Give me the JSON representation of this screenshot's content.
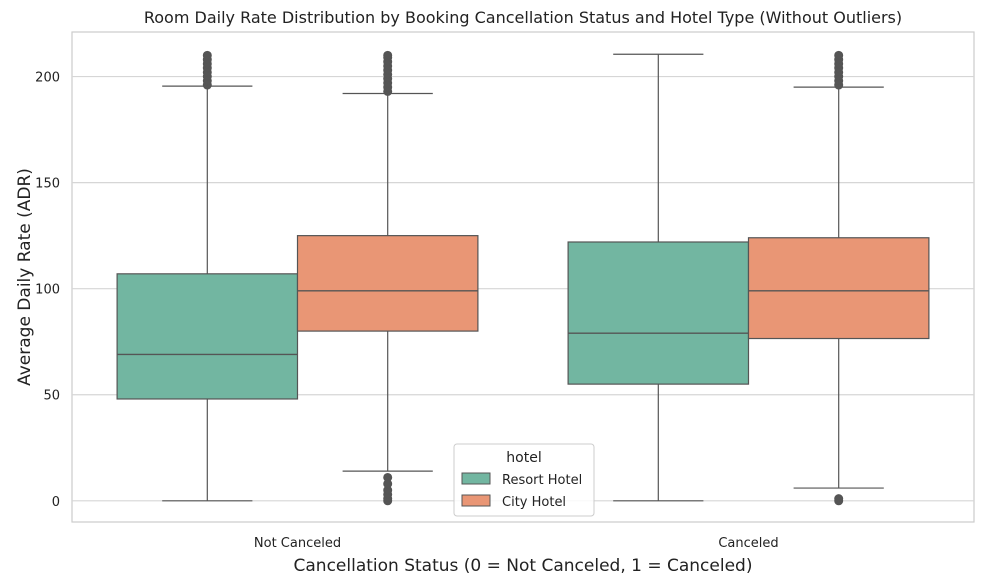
{
  "chart_data": {
    "type": "box",
    "title": "Room Daily Rate Distribution by Booking Cancellation Status and Hotel Type (Without Outliers)",
    "xlabel": "Cancellation Status (0 = Not Canceled, 1 = Canceled)",
    "ylabel": "Average Daily Rate (ADR)",
    "categories": [
      "Not Canceled",
      "Canceled"
    ],
    "ylim": [
      -10,
      221
    ],
    "yticks": [
      0,
      50,
      100,
      150,
      200
    ],
    "grid": true,
    "legend": {
      "title": "hotel",
      "position": "bottom-center"
    },
    "series": [
      {
        "name": "Resort Hotel",
        "color": "#72b6a1",
        "boxes": [
          {
            "category": "Not Canceled",
            "whisker_low": 0,
            "q1": 48,
            "median": 69,
            "q3": 107,
            "whisker_high": 195.5,
            "outliers_low": [],
            "outliers_high": [
              196,
              198,
              200,
              202,
              204,
              206,
              208,
              210
            ]
          },
          {
            "category": "Canceled",
            "whisker_low": 0,
            "q1": 55,
            "median": 79,
            "q3": 122,
            "whisker_high": 210.5,
            "outliers_low": [],
            "outliers_high": []
          }
        ]
      },
      {
        "name": "City Hotel",
        "color": "#e99675",
        "boxes": [
          {
            "category": "Not Canceled",
            "whisker_low": 14,
            "q1": 80,
            "median": 99,
            "q3": 125,
            "whisker_high": 192,
            "outliers_low": [
              0,
              1,
              3,
              5,
              8,
              11
            ],
            "outliers_high": [
              193,
              195,
              197,
              199,
              201,
              203,
              205,
              207,
              209,
              210
            ]
          },
          {
            "category": "Canceled",
            "whisker_low": 6,
            "q1": 76.5,
            "median": 99,
            "q3": 124,
            "whisker_high": 195,
            "outliers_low": [
              0,
              1
            ],
            "outliers_high": [
              196,
              198,
              200,
              202,
              204,
              206,
              208,
              210
            ]
          }
        ]
      }
    ]
  }
}
